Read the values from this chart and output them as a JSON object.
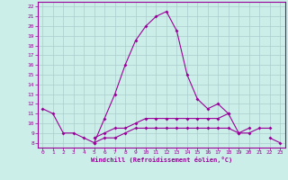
{
  "xlabel": "Windchill (Refroidissement éolien,°C)",
  "background_color": "#cceee8",
  "grid_color": "#aacccc",
  "line_color": "#990099",
  "x_ticks": [
    0,
    1,
    2,
    3,
    4,
    5,
    6,
    7,
    8,
    9,
    10,
    11,
    12,
    13,
    14,
    15,
    16,
    17,
    18,
    19,
    20,
    21,
    22,
    23
  ],
  "y_ticks": [
    8,
    9,
    10,
    11,
    12,
    13,
    14,
    15,
    16,
    17,
    18,
    19,
    20,
    21,
    22
  ],
  "ylim": [
    7.5,
    22.5
  ],
  "xlim": [
    -0.5,
    23.5
  ],
  "series": [
    [
      11.5,
      11.0,
      9.0,
      9.0,
      8.5,
      8.0,
      10.5,
      13.0,
      16.0,
      18.5,
      20.0,
      21.0,
      21.5,
      19.5,
      15.0,
      12.5,
      11.5,
      12.0,
      11.0,
      9.0,
      9.0,
      9.5,
      9.5,
      null
    ],
    [
      null,
      null,
      null,
      null,
      null,
      8.5,
      9.0,
      9.5,
      9.5,
      10.0,
      10.5,
      10.5,
      10.5,
      10.5,
      10.5,
      10.5,
      10.5,
      10.5,
      11.0,
      null,
      null,
      null,
      null,
      null
    ],
    [
      null,
      null,
      null,
      null,
      null,
      8.0,
      8.5,
      8.5,
      9.0,
      9.5,
      9.5,
      9.5,
      9.5,
      9.5,
      9.5,
      9.5,
      9.5,
      9.5,
      9.5,
      9.0,
      9.5,
      null,
      8.5,
      8.0
    ]
  ]
}
